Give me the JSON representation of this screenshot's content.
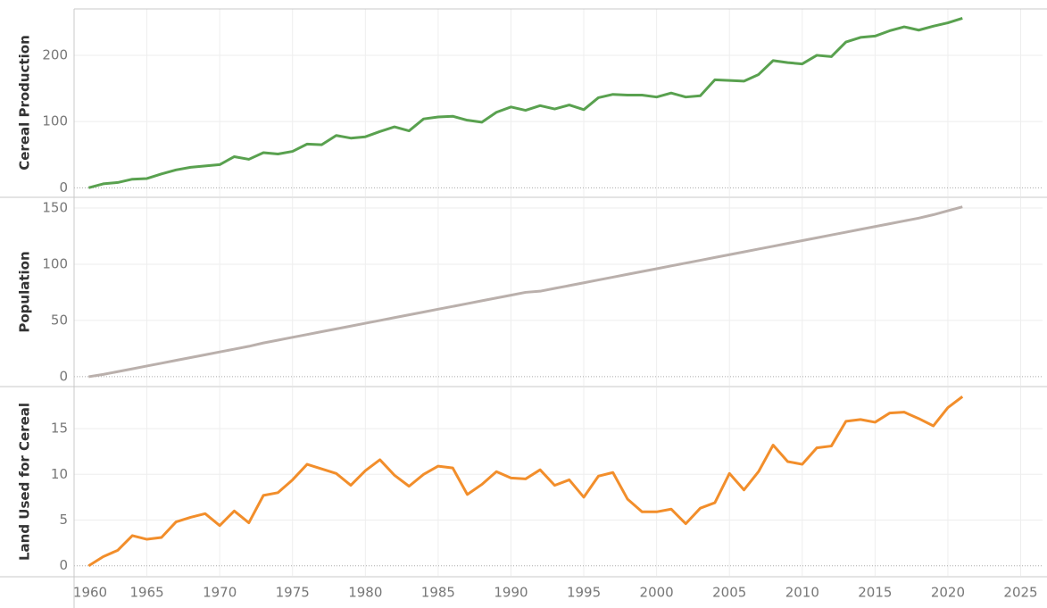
{
  "chart_data": [
    {
      "type": "line",
      "y_label": "Cereal Production",
      "x": [
        1961,
        1962,
        1963,
        1964,
        1965,
        1966,
        1967,
        1968,
        1969,
        1970,
        1971,
        1972,
        1973,
        1974,
        1975,
        1976,
        1977,
        1978,
        1979,
        1980,
        1981,
        1982,
        1983,
        1984,
        1985,
        1986,
        1987,
        1988,
        1989,
        1990,
        1991,
        1992,
        1993,
        1994,
        1995,
        1996,
        1997,
        1998,
        1999,
        2000,
        2001,
        2002,
        2003,
        2004,
        2005,
        2006,
        2007,
        2008,
        2009,
        2010,
        2011,
        2012,
        2013,
        2014,
        2015,
        2016,
        2017,
        2018,
        2019,
        2020,
        2021
      ],
      "series": [
        {
          "name": "Cereal Production",
          "color": "#59a14f",
          "values": [
            0,
            6,
            8,
            13,
            14,
            21,
            27,
            31,
            33,
            35,
            47,
            43,
            53,
            51,
            55,
            66,
            65,
            79,
            75,
            77,
            85,
            92,
            86,
            104,
            107,
            108,
            102,
            99,
            114,
            122,
            117,
            124,
            119,
            125,
            118,
            136,
            141,
            140,
            140,
            137,
            143,
            137,
            139,
            163,
            162,
            161,
            171,
            192,
            189,
            187,
            200,
            198,
            220,
            227,
            229,
            237,
            243,
            238,
            244,
            249,
            256
          ]
        }
      ],
      "xlim": [
        1960,
        2026.5
      ],
      "xticks": [
        1960,
        1965,
        1970,
        1975,
        1980,
        1985,
        1990,
        1995,
        2000,
        2005,
        2010,
        2015,
        2020,
        2025
      ],
      "ylim": [
        -13,
        270
      ],
      "yticks": [
        0,
        100,
        200
      ],
      "grid": true
    },
    {
      "type": "line",
      "y_label": "Population",
      "x": [
        1961,
        1962,
        1963,
        1964,
        1965,
        1966,
        1967,
        1968,
        1969,
        1970,
        1971,
        1972,
        1973,
        1974,
        1975,
        1976,
        1977,
        1978,
        1979,
        1980,
        1981,
        1982,
        1983,
        1984,
        1985,
        1986,
        1987,
        1988,
        1989,
        1990,
        1991,
        1992,
        1993,
        1994,
        1995,
        1996,
        1997,
        1998,
        1999,
        2000,
        2001,
        2002,
        2003,
        2004,
        2005,
        2006,
        2007,
        2008,
        2009,
        2010,
        2011,
        2012,
        2013,
        2014,
        2015,
        2016,
        2017,
        2018,
        2019,
        2020,
        2021
      ],
      "series": [
        {
          "name": "Population",
          "color": "#bab0ac",
          "values": [
            0,
            2,
            4.5,
            7,
            9.5,
            12,
            14.5,
            17,
            19.5,
            22,
            24.5,
            27,
            30,
            32.5,
            35,
            37.5,
            40,
            42.5,
            45,
            47.5,
            50,
            52.5,
            55,
            57.5,
            60,
            62.5,
            65,
            67.5,
            70,
            72.5,
            75,
            76,
            78.5,
            81,
            83.5,
            86,
            88.5,
            91,
            93.5,
            96,
            98.5,
            101,
            103.5,
            106,
            108.5,
            111,
            113.5,
            116,
            118.5,
            121,
            123.5,
            126,
            128.5,
            131,
            133.5,
            136,
            138.5,
            141,
            144,
            147.5,
            151
          ]
        }
      ],
      "xlim": [
        1960,
        2026.5
      ],
      "xticks": [
        1960,
        1965,
        1970,
        1975,
        1980,
        1985,
        1990,
        1995,
        2000,
        2005,
        2010,
        2015,
        2020,
        2025
      ],
      "ylim": [
        -8,
        158.7
      ],
      "yticks": [
        0,
        50,
        100,
        150
      ],
      "grid": true
    },
    {
      "type": "line",
      "y_label": "Land Used for Cereal",
      "x": [
        1961,
        1962,
        1963,
        1964,
        1965,
        1966,
        1967,
        1968,
        1969,
        1970,
        1971,
        1972,
        1973,
        1974,
        1975,
        1976,
        1977,
        1978,
        1979,
        1980,
        1981,
        1982,
        1983,
        1984,
        1985,
        1986,
        1987,
        1988,
        1989,
        1990,
        1991,
        1992,
        1993,
        1994,
        1995,
        1996,
        1997,
        1998,
        1999,
        2000,
        2001,
        2002,
        2003,
        2004,
        2005,
        2006,
        2007,
        2008,
        2009,
        2010,
        2011,
        2012,
        2013,
        2014,
        2015,
        2016,
        2017,
        2018,
        2019,
        2020,
        2021
      ],
      "series": [
        {
          "name": "Land Used for Cereal",
          "color": "#f28e2b",
          "values": [
            0,
            1,
            1.7,
            3.3,
            2.9,
            3.1,
            4.8,
            5.3,
            5.7,
            4.4,
            6,
            4.7,
            7.7,
            8,
            9.4,
            11.1,
            10.6,
            10.1,
            8.8,
            10.4,
            11.6,
            9.9,
            8.7,
            10,
            10.9,
            10.7,
            7.8,
            8.9,
            10.3,
            9.6,
            9.5,
            10.5,
            8.8,
            9.4,
            7.5,
            9.8,
            10.2,
            7.3,
            5.9,
            5.9,
            6.2,
            4.6,
            6.3,
            6.9,
            10.1,
            8.3,
            10.3,
            13.2,
            11.4,
            11.1,
            12.9,
            13.1,
            15.8,
            16,
            15.7,
            16.7,
            16.8,
            16.1,
            15.3,
            17.3,
            18.5
          ]
        }
      ],
      "xlim": [
        1960,
        2026.5
      ],
      "xticks": [
        1960,
        1965,
        1970,
        1975,
        1980,
        1985,
        1990,
        1995,
        2000,
        2005,
        2010,
        2015,
        2020,
        2025
      ],
      "ylim": [
        -1.1,
        19.5
      ],
      "yticks": [
        0,
        5,
        10,
        15
      ],
      "grid": true
    }
  ]
}
